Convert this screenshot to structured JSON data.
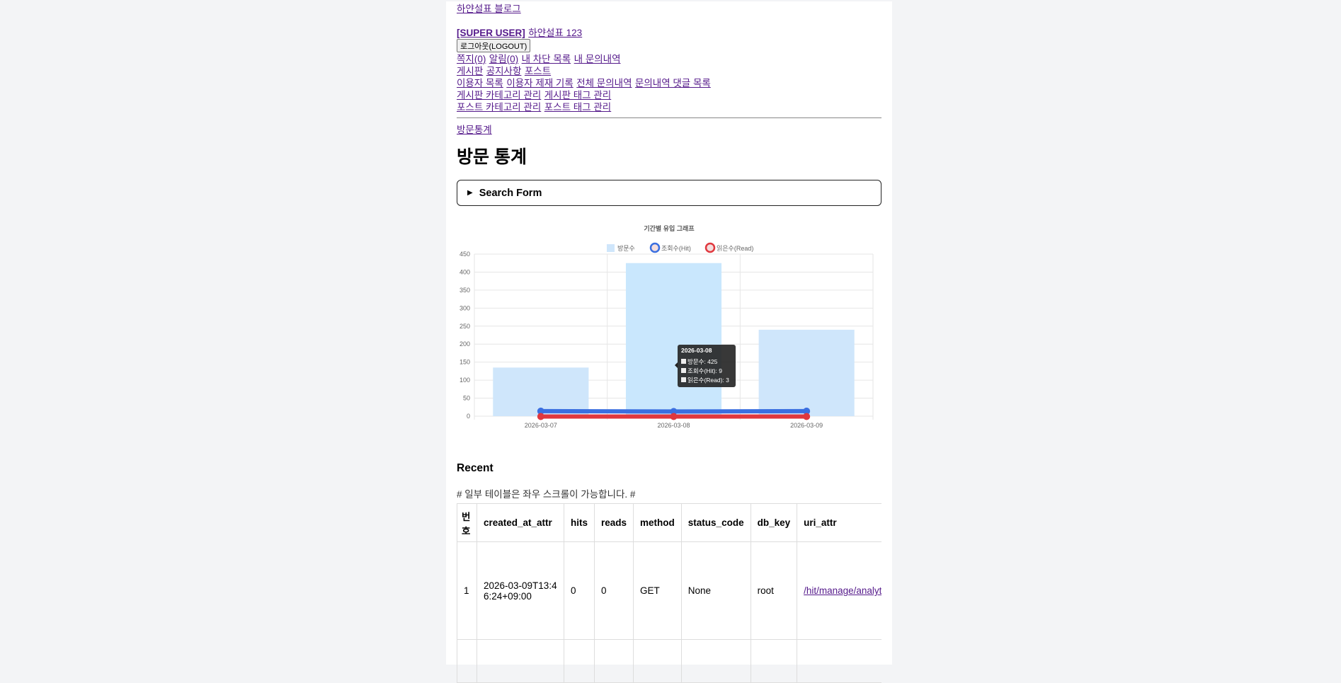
{
  "header": {
    "blog_link": "하얀설표 블로그",
    "user_role": "[SUPER USER]",
    "user_name": "하얀설표 123",
    "logout_button": "로그아웃(LOGOUT)"
  },
  "nav": {
    "row1": [
      "쪽지(0)",
      "알림(0)",
      "내 차단 목록",
      "내 문의내역"
    ],
    "row2": [
      "게시판",
      "공지사항",
      "포스트"
    ],
    "row3": [
      "이용자 목록",
      "이용자 제재 기록",
      "전체 문의내역",
      "문의내역 댓글 목록"
    ],
    "row4": [
      "게시판 카테고리 관리",
      "게시판 태그 관리"
    ],
    "row5": [
      "포스트 카테고리 관리",
      "포스트 태그 관리"
    ]
  },
  "breadcrumb": "방문통계",
  "page_title": "방문 통계",
  "search_form_label": "Search Form",
  "chart_data": {
    "type": "bar",
    "title": "기간별 유입 그래프",
    "categories": [
      "2026-03-07",
      "2026-03-08",
      "2026-03-09"
    ],
    "series": [
      {
        "name": "방문수",
        "type": "bar",
        "values": [
          135,
          425,
          240
        ],
        "color": "#cfe6fb"
      },
      {
        "name": "조회수(Hit)",
        "type": "line",
        "values": [
          10,
          9,
          10
        ],
        "color": "#3b6fe0"
      },
      {
        "name": "읽은수(Read)",
        "type": "line",
        "values": [
          3,
          3,
          3
        ],
        "color": "#e0383e"
      }
    ],
    "ylim": [
      0,
      450
    ],
    "yticks": [
      0,
      50,
      100,
      150,
      200,
      250,
      300,
      350,
      400,
      450
    ],
    "grid": true,
    "legend": "top",
    "tooltip": {
      "title": "2026-03-08",
      "lines": [
        "방문수: 425",
        "조회수(Hit): 9",
        "읽은수(Read): 3"
      ]
    }
  },
  "recent": {
    "heading": "Recent",
    "note": "# 일부 테이블은 좌우 스크롤이 가능합니다. #",
    "columns": [
      "번호",
      "created_at_attr",
      "hits",
      "reads",
      "method",
      "status_code",
      "db_key",
      "uri_attr"
    ],
    "rows": [
      {
        "no": "1",
        "created_at": "2026-03-09T13:46:24+09:00",
        "hits": "0",
        "reads": "0",
        "method": "GET",
        "status_code": "None",
        "db_key": "root",
        "uri": "/hit/manage/analytics/"
      }
    ]
  }
}
